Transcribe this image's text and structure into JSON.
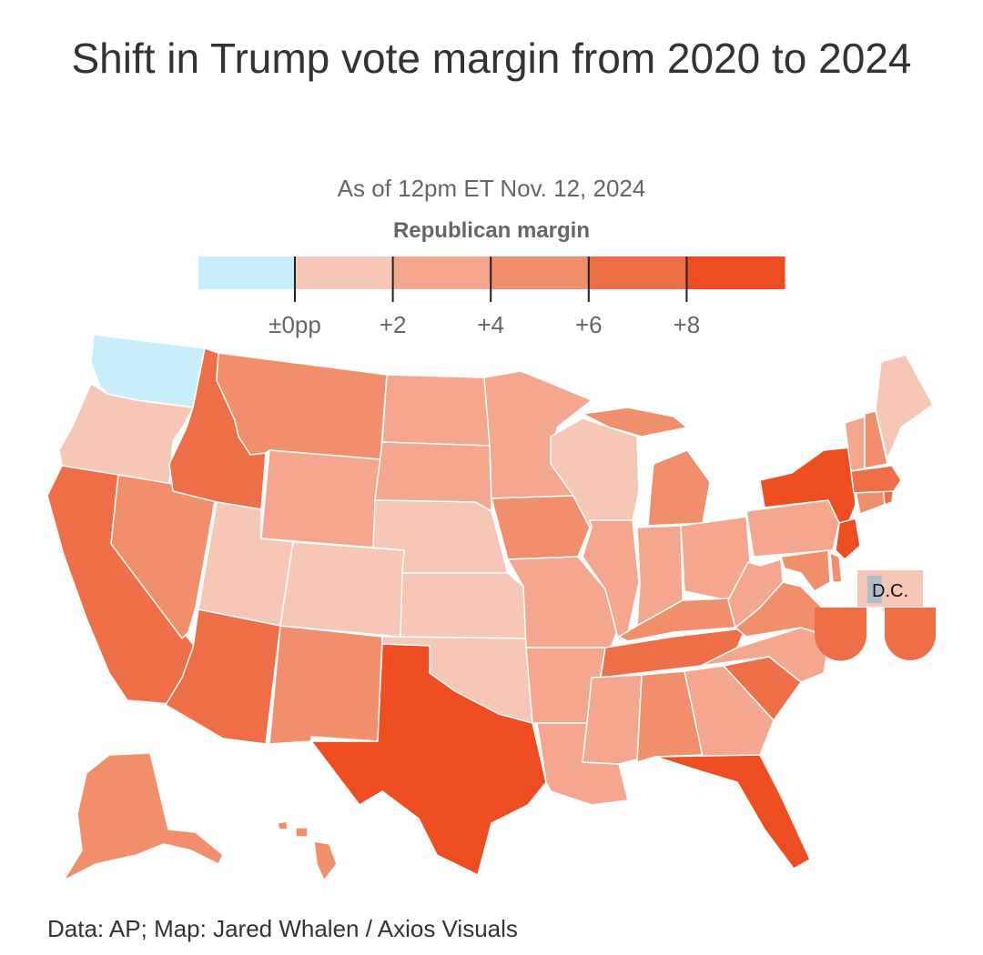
{
  "title": "Shift in Trump vote margin from 2020 to 2024",
  "subtitle": "As of 12pm ET Nov. 12, 2024",
  "source": "Data: AP; Map: Jared Whalen / Axios Visuals",
  "legend": {
    "title": "Republican margin",
    "bins": [
      {
        "color": "#c7eefa"
      },
      {
        "color": "#f6c6b6"
      },
      {
        "color": "#f4a78e"
      },
      {
        "color": "#f18e6b"
      },
      {
        "color": "#ee6e47"
      },
      {
        "color": "#ee4d22"
      }
    ],
    "ticks": [
      "±0pp",
      "+2",
      "+4",
      "+6",
      "+8"
    ]
  },
  "map": {
    "dc_label": "D.C.",
    "dc_color": "#aebec8",
    "states": [
      {
        "code": "WA",
        "color": "#c7eefa"
      },
      {
        "code": "OR",
        "color": "#f6c6b6"
      },
      {
        "code": "CA",
        "color": "#ee6e47"
      },
      {
        "code": "NV",
        "color": "#f18e6b"
      },
      {
        "code": "ID",
        "color": "#ee6e47"
      },
      {
        "code": "MT",
        "color": "#f18e6b"
      },
      {
        "code": "WY",
        "color": "#f4a78e"
      },
      {
        "code": "UT",
        "color": "#f6c6b6"
      },
      {
        "code": "AZ",
        "color": "#ee6e47"
      },
      {
        "code": "CO",
        "color": "#f6c6b6"
      },
      {
        "code": "NM",
        "color": "#f18e6b"
      },
      {
        "code": "ND",
        "color": "#f4a78e"
      },
      {
        "code": "SD",
        "color": "#f4a78e"
      },
      {
        "code": "NE",
        "color": "#f6c6b6"
      },
      {
        "code": "KS",
        "color": "#f6c6b6"
      },
      {
        "code": "OK",
        "color": "#f6c6b6"
      },
      {
        "code": "TX",
        "color": "#ee4d22"
      },
      {
        "code": "MN",
        "color": "#f4a78e"
      },
      {
        "code": "IA",
        "color": "#f18e6b"
      },
      {
        "code": "MO",
        "color": "#f4a78e"
      },
      {
        "code": "AR",
        "color": "#f4a78e"
      },
      {
        "code": "LA",
        "color": "#f4a78e"
      },
      {
        "code": "WI",
        "color": "#f6c6b6"
      },
      {
        "code": "IL",
        "color": "#f4a78e"
      },
      {
        "code": "MI",
        "color": "#f18e6b"
      },
      {
        "code": "IN",
        "color": "#f4a78e"
      },
      {
        "code": "OH",
        "color": "#f4a78e"
      },
      {
        "code": "KY",
        "color": "#f18e6b"
      },
      {
        "code": "TN",
        "color": "#ee6e47"
      },
      {
        "code": "MS",
        "color": "#f4a78e"
      },
      {
        "code": "AL",
        "color": "#f18e6b"
      },
      {
        "code": "GA",
        "color": "#f4a78e"
      },
      {
        "code": "FL",
        "color": "#ee4d22"
      },
      {
        "code": "SC",
        "color": "#ee6e47"
      },
      {
        "code": "NC",
        "color": "#f4a78e"
      },
      {
        "code": "VA",
        "color": "#f18e6b"
      },
      {
        "code": "WV",
        "color": "#f4a78e"
      },
      {
        "code": "PA",
        "color": "#f4a78e"
      },
      {
        "code": "NY",
        "color": "#ee4d22"
      },
      {
        "code": "NJ",
        "color": "#ee4d22"
      },
      {
        "code": "DE",
        "color": "#f18e6b"
      },
      {
        "code": "MD",
        "color": "#f18e6b"
      },
      {
        "code": "CT",
        "color": "#f18e6b"
      },
      {
        "code": "RI",
        "color": "#ee6e47"
      },
      {
        "code": "MA",
        "color": "#ee6e47"
      },
      {
        "code": "VT",
        "color": "#f4a78e"
      },
      {
        "code": "NH",
        "color": "#f18e6b"
      },
      {
        "code": "ME",
        "color": "#f6c6b6"
      },
      {
        "code": "AK",
        "color": "#f18e6b"
      },
      {
        "code": "HI",
        "color": "#f18e6b"
      }
    ]
  }
}
